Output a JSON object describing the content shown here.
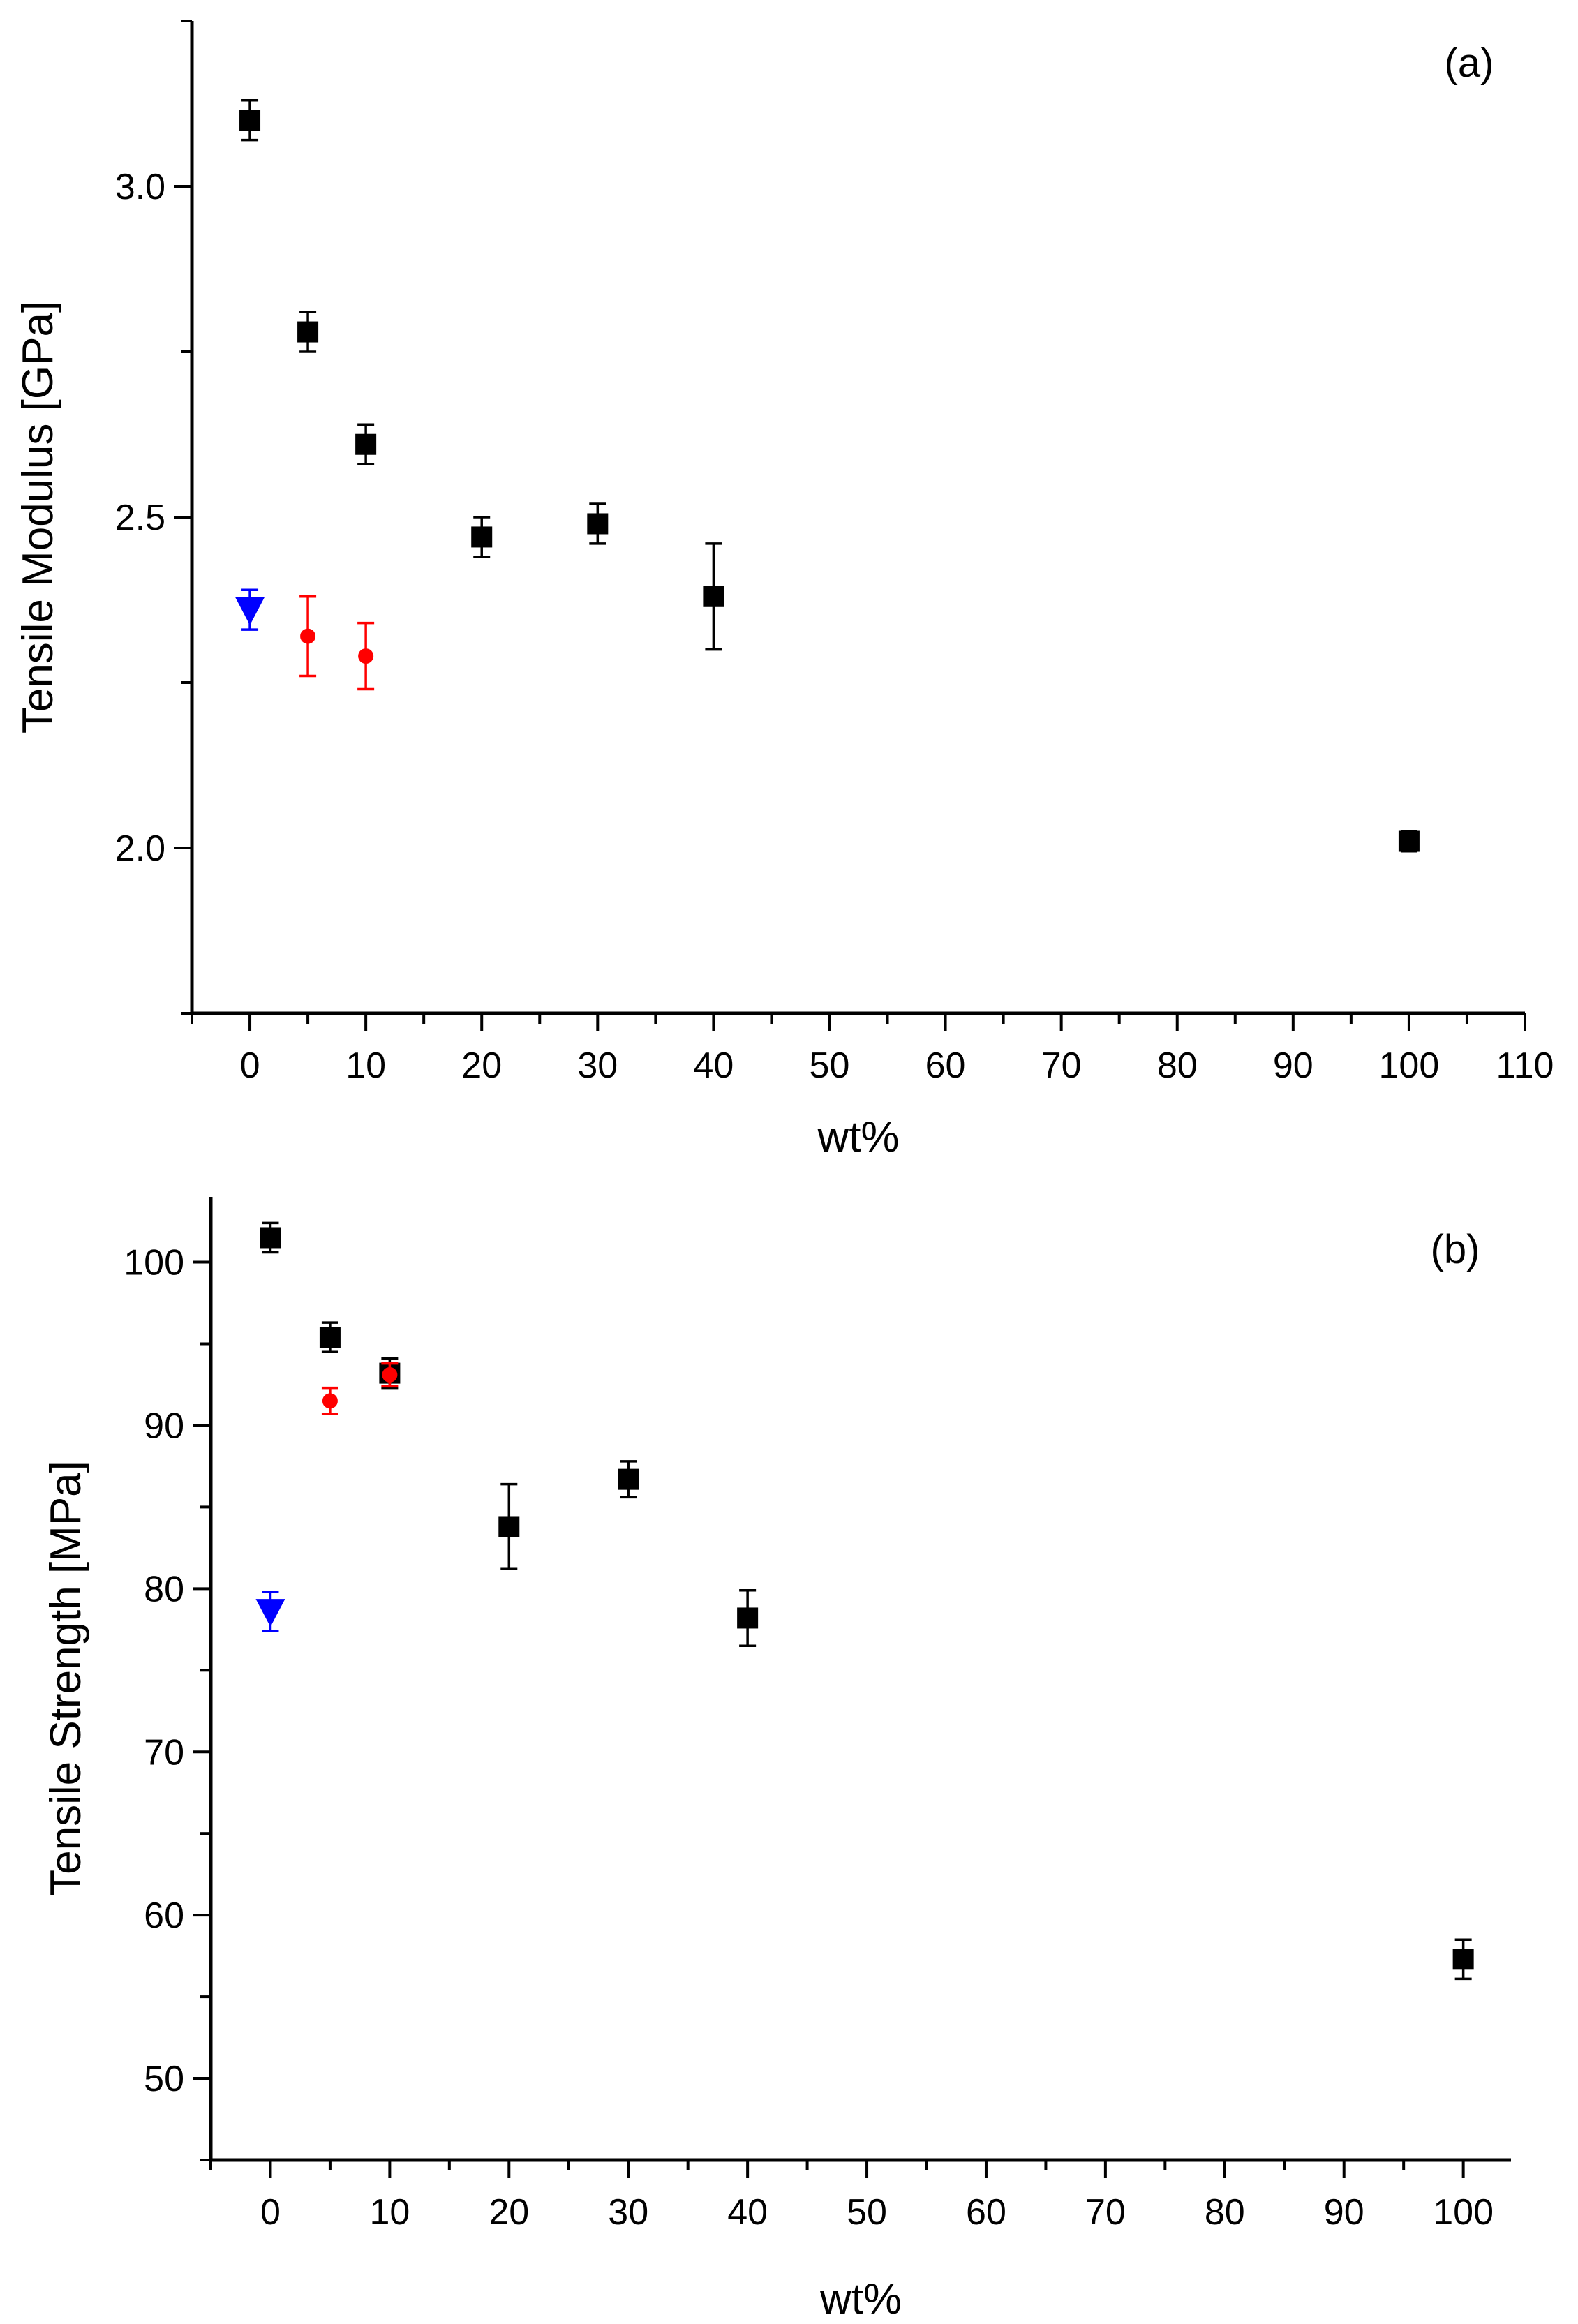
{
  "chart_data": [
    {
      "type": "scatter",
      "panel_label": "(a)",
      "xlabel": "wt%",
      "ylabel": "Tensile Modulus [GPa]",
      "xlim": [
        -5,
        110
      ],
      "ylim": [
        1.75,
        3.25
      ],
      "xticks": [
        0,
        10,
        20,
        30,
        40,
        50,
        60,
        70,
        80,
        90,
        100,
        110
      ],
      "yticks": [
        2.0,
        2.5,
        3.0
      ],
      "ytick_labels": [
        "2.0",
        "2.5",
        "3.0"
      ],
      "grid": false,
      "series": [
        {
          "name": "black-squares",
          "marker": "square",
          "color": "#000000",
          "points": [
            {
              "x": 0,
              "y": 3.1,
              "err": 0.03
            },
            {
              "x": 5,
              "y": 2.78,
              "err": 0.03
            },
            {
              "x": 10,
              "y": 2.61,
              "err": 0.03
            },
            {
              "x": 20,
              "y": 2.47,
              "err": 0.03
            },
            {
              "x": 30,
              "y": 2.49,
              "err": 0.03
            },
            {
              "x": 40,
              "y": 2.38,
              "err": 0.08
            },
            {
              "x": 100,
              "y": 2.01,
              "err": 0.015
            }
          ]
        },
        {
          "name": "red-circles",
          "marker": "circle",
          "color": "#ff0000",
          "points": [
            {
              "x": 5,
              "y": 2.32,
              "err": 0.06
            },
            {
              "x": 10,
              "y": 2.29,
              "err": 0.05
            }
          ]
        },
        {
          "name": "blue-triangles",
          "marker": "triangle-down",
          "color": "#0000ff",
          "points": [
            {
              "x": 0,
              "y": 2.36,
              "err": 0.03
            }
          ]
        }
      ]
    },
    {
      "type": "scatter",
      "panel_label": "(b)",
      "xlabel": "wt%",
      "ylabel": "Tensile Strength [MPa]",
      "xlim": [
        -5,
        104
      ],
      "ylim": [
        45,
        104
      ],
      "xticks": [
        0,
        10,
        20,
        30,
        40,
        50,
        60,
        70,
        80,
        90,
        100
      ],
      "yticks": [
        50,
        60,
        70,
        80,
        90,
        100
      ],
      "ytick_labels": [
        "50",
        "60",
        "70",
        "80",
        "90",
        "100"
      ],
      "grid": false,
      "series": [
        {
          "name": "black-squares",
          "marker": "square",
          "color": "#000000",
          "points": [
            {
              "x": 0,
              "y": 101.5,
              "err": 0.9
            },
            {
              "x": 5,
              "y": 95.4,
              "err": 0.9
            },
            {
              "x": 10,
              "y": 93.2,
              "err": 0.9
            },
            {
              "x": 20,
              "y": 83.8,
              "err": 2.6
            },
            {
              "x": 30,
              "y": 86.7,
              "err": 1.1
            },
            {
              "x": 40,
              "y": 78.2,
              "err": 1.7
            },
            {
              "x": 100,
              "y": 57.3,
              "err": 1.2
            }
          ]
        },
        {
          "name": "red-circles",
          "marker": "circle",
          "color": "#ff0000",
          "points": [
            {
              "x": 5,
              "y": 91.5,
              "err": 0.8
            },
            {
              "x": 10,
              "y": 93.1,
              "err": 0.7
            }
          ]
        },
        {
          "name": "blue-triangles",
          "marker": "triangle-down",
          "color": "#0000ff",
          "points": [
            {
              "x": 0,
              "y": 78.6,
              "err": 1.2
            }
          ]
        }
      ]
    }
  ]
}
